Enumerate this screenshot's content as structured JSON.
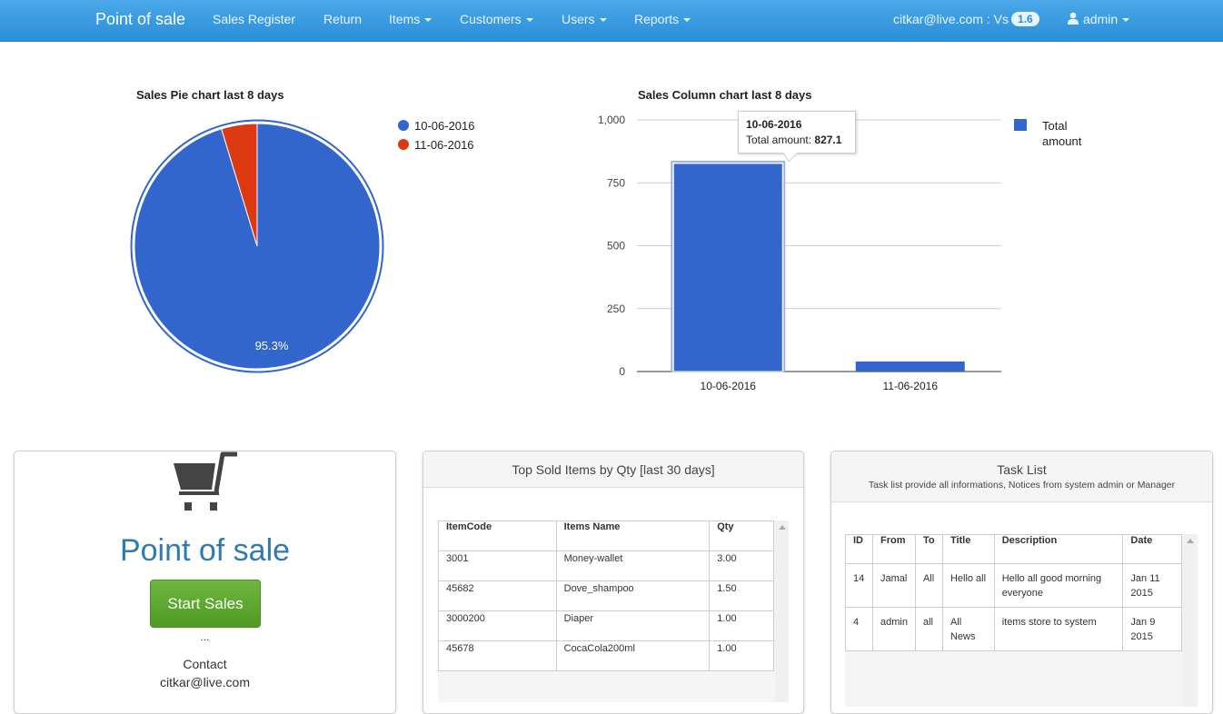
{
  "navbar": {
    "brand": "Point of sale",
    "items": [
      {
        "label": "Sales Register",
        "dropdown": false
      },
      {
        "label": "Return",
        "dropdown": false
      },
      {
        "label": "Items",
        "dropdown": true
      },
      {
        "label": "Customers",
        "dropdown": true
      },
      {
        "label": "Users",
        "dropdown": true
      },
      {
        "label": "Reports",
        "dropdown": true
      }
    ],
    "account_email": "citkar@live.com : Vs",
    "version_badge": "1.6",
    "user_label": "admin"
  },
  "pie_chart": {
    "title": "Sales Pie chart last 8 days",
    "slice_label": "95.3%",
    "legend": [
      "10-06-2016",
      "11-06-2016"
    ]
  },
  "column_chart": {
    "title": "Sales Column chart last 8 days",
    "legend": "Total amount",
    "y_ticks": [
      "1,000",
      "750",
      "500",
      "250",
      "0"
    ],
    "tooltip": {
      "date": "10-06-2016",
      "label": "Total amount:",
      "value": "827.1"
    }
  },
  "chart_data": [
    {
      "type": "pie",
      "title": "Sales Pie chart last 8 days",
      "categories": [
        "10-06-2016",
        "11-06-2016"
      ],
      "values": [
        95.3,
        4.7
      ],
      "colors": [
        "#3366cc",
        "#dc3912"
      ],
      "legend_position": "right"
    },
    {
      "type": "bar",
      "title": "Sales Column chart last 8 days",
      "categories": [
        "10-06-2016",
        "11-06-2016"
      ],
      "series": [
        {
          "name": "Total amount",
          "values": [
            827.1,
            40
          ]
        }
      ],
      "ylim": [
        0,
        1000
      ],
      "y_ticks": [
        0,
        250,
        500,
        750,
        1000
      ],
      "grid": true,
      "colors": [
        "#3366cc"
      ],
      "legend_position": "right"
    }
  ],
  "pos_panel": {
    "title": "Point of sale",
    "button": "Start Sales",
    "ellipsis": "...",
    "contact_label": "Contact",
    "contact_email": "citkar@live.com"
  },
  "top_items": {
    "title": "Top Sold Items by Qty [last 30 days]",
    "headers": [
      "ItemCode",
      "Items Name",
      "Qty"
    ],
    "rows": [
      [
        "3001",
        "Money-wallet",
        "3.00"
      ],
      [
        "45682",
        "Dove_shampoo",
        "1.50"
      ],
      [
        "3000200",
        "Diaper",
        "1.00"
      ],
      [
        "45678",
        "CocaCola200ml",
        "1.00"
      ]
    ]
  },
  "tasks": {
    "title": "Task List",
    "subtitle": "Task list provide all informations, Notices from system admin or Manager",
    "headers": [
      "ID",
      "From",
      "To",
      "Title",
      "Description",
      "Date"
    ],
    "rows": [
      [
        "14",
        "Jamal",
        "All",
        "Hello all",
        "Hello all good morning everyone",
        "Jan 11 2015"
      ],
      [
        "4",
        "admin",
        "all",
        "All News",
        "items store to system",
        "Jan 9 2015"
      ]
    ]
  }
}
